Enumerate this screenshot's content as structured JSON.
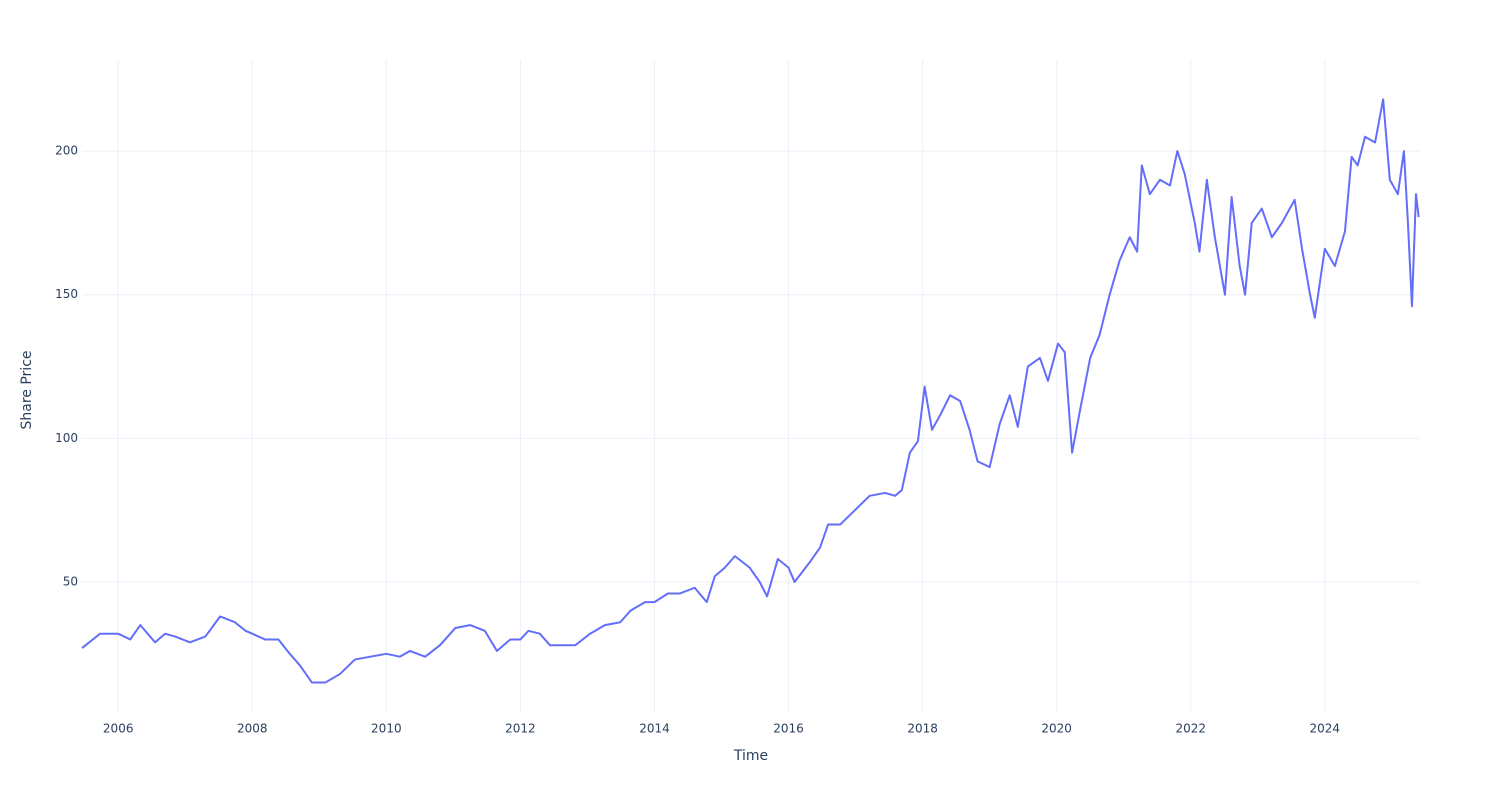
{
  "chart_data": {
    "type": "line",
    "x_label": "Time",
    "y_label": "Share Price",
    "x": [
      2005.46,
      2005.73,
      2006.0,
      2006.18,
      2006.33,
      2006.55,
      2006.7,
      2006.85,
      2007.07,
      2007.3,
      2007.52,
      2007.74,
      2007.9,
      2008.0,
      2008.19,
      2008.39,
      2008.56,
      2008.71,
      2008.89,
      2009.09,
      2009.31,
      2009.53,
      2009.76,
      2010.0,
      2010.2,
      2010.35,
      2010.58,
      2010.8,
      2011.03,
      2011.25,
      2011.47,
      2011.65,
      2011.85,
      2012.0,
      2012.12,
      2012.29,
      2012.44,
      2012.67,
      2012.82,
      2013.04,
      2013.26,
      2013.49,
      2013.64,
      2013.86,
      2014.0,
      2014.2,
      2014.38,
      2014.6,
      2014.78,
      2014.9,
      2015.05,
      2015.2,
      2015.42,
      2015.57,
      2015.68,
      2015.84,
      2016.0,
      2016.09,
      2016.32,
      2016.47,
      2016.59,
      2016.77,
      2016.99,
      2017.21,
      2017.44,
      2017.59,
      2017.69,
      2017.81,
      2017.93,
      2018.03,
      2018.14,
      2018.26,
      2018.41,
      2018.56,
      2018.7,
      2018.82,
      2019.0,
      2019.15,
      2019.3,
      2019.42,
      2019.57,
      2019.75,
      2019.87,
      2020.02,
      2020.12,
      2020.23,
      2020.35,
      2020.5,
      2020.64,
      2020.79,
      2020.94,
      2021.09,
      2021.2,
      2021.27,
      2021.39,
      2021.54,
      2021.69,
      2021.8,
      2021.91,
      2022.06,
      2022.13,
      2022.24,
      2022.36,
      2022.51,
      2022.61,
      2022.73,
      2022.81,
      2022.91,
      2023.06,
      2023.21,
      2023.36,
      2023.55,
      2023.66,
      2023.78,
      2023.85,
      2024.0,
      2024.15,
      2024.3,
      2024.4,
      2024.49,
      2024.6,
      2024.75,
      2024.87,
      2024.97,
      2025.09,
      2025.18,
      2025.24,
      2025.3,
      2025.36,
      2025.4
    ],
    "series": [
      {
        "color": "#636efa",
        "values": [
          27,
          32,
          32,
          30,
          35,
          29,
          32,
          31,
          29,
          31,
          38,
          36,
          33,
          32,
          30,
          30,
          25,
          21,
          15,
          15,
          18,
          23,
          24,
          25,
          24,
          26,
          24,
          28,
          34,
          35,
          33,
          26,
          30,
          30,
          33,
          32,
          28,
          28,
          28,
          32,
          35,
          36,
          40,
          43,
          43,
          46,
          46,
          48,
          43,
          52,
          55,
          59,
          55,
          50,
          45,
          58,
          55,
          50,
          57,
          62,
          70,
          70,
          75,
          80,
          81,
          80,
          82,
          95,
          99,
          118,
          103,
          108,
          115,
          113,
          103,
          92,
          90,
          105,
          115,
          104,
          125,
          128,
          120,
          133,
          130,
          95,
          110,
          128,
          136,
          150,
          162,
          170,
          165,
          195,
          185,
          190,
          188,
          200,
          192,
          175,
          165,
          190,
          170,
          150,
          184,
          160,
          150,
          175,
          180,
          170,
          175,
          183,
          166,
          150,
          142,
          166,
          160,
          172,
          198,
          195,
          205,
          203,
          218,
          190,
          185,
          200,
          175,
          146,
          185,
          177
        ]
      }
    ],
    "xlim": [
      2005.46,
      2025.42
    ],
    "xticks": [
      2006,
      2008,
      2010,
      2012,
      2014,
      2016,
      2018,
      2020,
      2022,
      2024
    ],
    "ylim": [
      4.75,
      231.7
    ],
    "yticks": [
      50,
      100,
      150,
      200
    ],
    "grid": true
  }
}
